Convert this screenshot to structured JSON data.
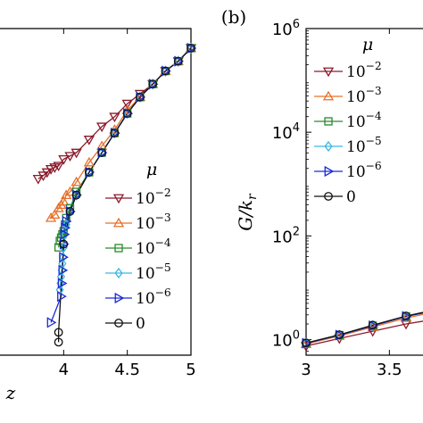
{
  "chart_data": [
    {
      "panel_label": "",
      "type": "line",
      "xlabel": "z",
      "ylabel": "",
      "xlim": [
        3.5,
        5.0
      ],
      "ylim": [
        0,
        1
      ],
      "xticks": [
        "4",
        "4.5",
        "5"
      ],
      "grid": false,
      "legend": {
        "title": "μ",
        "placement": "bottom-right",
        "entries": [
          "10^-2",
          "10^-3",
          "10^-4",
          "10^-5",
          "10^-6",
          "0"
        ]
      },
      "series": [
        {
          "name": "10^-2",
          "color": "#8b1a2b",
          "marker": "triangle-down",
          "x": [
            3.8,
            3.84,
            3.87,
            3.9,
            3.93,
            3.96,
            4.0,
            4.05,
            4.1,
            4.2,
            4.3,
            4.4,
            4.5,
            4.6,
            4.7,
            4.8,
            4.9,
            5.0
          ],
          "y": [
            0.54,
            0.55,
            0.56,
            0.57,
            0.575,
            0.58,
            0.6,
            0.61,
            0.62,
            0.66,
            0.7,
            0.73,
            0.77,
            0.8,
            0.83,
            0.87,
            0.9,
            0.94
          ]
        },
        {
          "name": "10^-3",
          "color": "#e8702a",
          "marker": "triangle-up",
          "x": [
            3.9,
            3.93,
            3.96,
            3.98,
            4.0,
            4.02,
            4.05,
            4.1,
            4.2,
            4.3,
            4.4,
            4.5,
            4.6,
            4.7,
            4.8,
            4.9,
            5.0
          ],
          "y": [
            0.42,
            0.43,
            0.45,
            0.46,
            0.47,
            0.49,
            0.5,
            0.53,
            0.59,
            0.64,
            0.69,
            0.75,
            0.79,
            0.83,
            0.87,
            0.9,
            0.94
          ]
        },
        {
          "name": "10^-4",
          "color": "#2a8a2a",
          "marker": "square",
          "x": [
            3.96,
            3.97,
            3.98,
            3.99,
            4.0,
            4.01,
            4.02,
            4.05,
            4.1,
            4.2,
            4.3,
            4.4,
            4.5,
            4.6,
            4.7,
            4.8,
            4.9,
            5.0
          ],
          "y": [
            0.33,
            0.35,
            0.36,
            0.37,
            0.38,
            0.4,
            0.42,
            0.45,
            0.5,
            0.56,
            0.62,
            0.68,
            0.74,
            0.79,
            0.83,
            0.87,
            0.9,
            0.94
          ]
        },
        {
          "name": "10^-5",
          "color": "#3fb7e0",
          "marker": "diamond",
          "x": [
            3.97,
            3.975,
            3.98,
            3.985,
            3.99,
            3.995,
            4.0,
            4.01,
            4.02,
            4.05,
            4.1,
            4.2,
            4.3,
            4.4,
            4.5,
            4.6,
            4.7,
            4.8,
            4.9,
            5.0
          ],
          "y": [
            0.2,
            0.22,
            0.24,
            0.26,
            0.28,
            0.3,
            0.33,
            0.37,
            0.4,
            0.44,
            0.49,
            0.56,
            0.62,
            0.68,
            0.74,
            0.79,
            0.83,
            0.87,
            0.9,
            0.94
          ]
        },
        {
          "name": "10^-6",
          "color": "#1c2bd6",
          "marker": "triangle-right",
          "x": [
            3.9,
            3.98,
            3.985,
            3.99,
            3.995,
            4.0,
            4.005,
            4.01,
            4.02,
            4.05,
            4.1,
            4.2,
            4.3,
            4.4,
            4.5,
            4.6,
            4.7,
            4.8,
            4.9,
            5.0
          ],
          "y": [
            0.1,
            0.18,
            0.22,
            0.26,
            0.3,
            0.34,
            0.37,
            0.39,
            0.41,
            0.44,
            0.49,
            0.56,
            0.62,
            0.68,
            0.74,
            0.79,
            0.83,
            0.87,
            0.9,
            0.94
          ]
        },
        {
          "name": "0",
          "color": "#111111",
          "marker": "circle",
          "x": [
            3.96,
            3.96,
            4.0,
            4.05,
            4.1,
            4.2,
            4.3,
            4.4,
            4.5,
            4.6,
            4.7,
            4.8,
            4.9,
            5.0
          ],
          "y": [
            0.04,
            0.07,
            0.34,
            0.44,
            0.49,
            0.56,
            0.62,
            0.68,
            0.74,
            0.79,
            0.83,
            0.87,
            0.9,
            0.94
          ]
        }
      ]
    },
    {
      "panel_label": "(b)",
      "type": "line",
      "xlabel": "",
      "ylabel": "G/k_r",
      "yscale": "log",
      "xlim": [
        3.0,
        3.75
      ],
      "ylim": [
        0.5,
        1000000
      ],
      "xticks": [
        "3",
        "3.5"
      ],
      "yticks": [
        "10^0",
        "10^2",
        "10^4",
        "10^6"
      ],
      "grid": false,
      "legend": {
        "title": "μ",
        "placement": "top-left",
        "entries": [
          "10^-2",
          "10^-3",
          "10^-4",
          "10^-5",
          "10^-6",
          "0"
        ]
      },
      "series": [
        {
          "name": "10^-2",
          "color": "#8b1a2b",
          "marker": "triangle-down",
          "x": [
            3.0,
            3.2,
            3.4,
            3.6,
            3.75
          ],
          "y": [
            0.75,
            1.05,
            1.45,
            2.0,
            2.4
          ]
        },
        {
          "name": "10^-3",
          "color": "#e8702a",
          "marker": "triangle-up",
          "x": [
            3.0,
            3.2,
            3.4,
            3.6,
            3.75
          ],
          "y": [
            0.82,
            1.18,
            1.75,
            2.6,
            3.3
          ]
        },
        {
          "name": "10^-4",
          "color": "#2a8a2a",
          "marker": "square",
          "x": [
            3.0,
            3.2,
            3.4,
            3.6,
            3.75
          ],
          "y": [
            0.85,
            1.22,
            1.85,
            2.8,
            3.5
          ]
        },
        {
          "name": "10^-5",
          "color": "#3fb7e0",
          "marker": "diamond",
          "x": [
            3.0,
            3.2,
            3.4,
            3.6,
            3.75
          ],
          "y": [
            0.85,
            1.22,
            1.85,
            2.8,
            3.5
          ]
        },
        {
          "name": "10^-6",
          "color": "#1c2bd6",
          "marker": "triangle-right",
          "x": [
            3.0,
            3.2,
            3.4,
            3.6,
            3.75
          ],
          "y": [
            0.85,
            1.22,
            1.85,
            2.8,
            3.5
          ]
        },
        {
          "name": "0",
          "color": "#111111",
          "marker": "circle",
          "x": [
            3.0,
            3.2,
            3.4,
            3.6,
            3.75
          ],
          "y": [
            0.86,
            1.24,
            1.9,
            2.85,
            3.6
          ]
        }
      ]
    }
  ]
}
